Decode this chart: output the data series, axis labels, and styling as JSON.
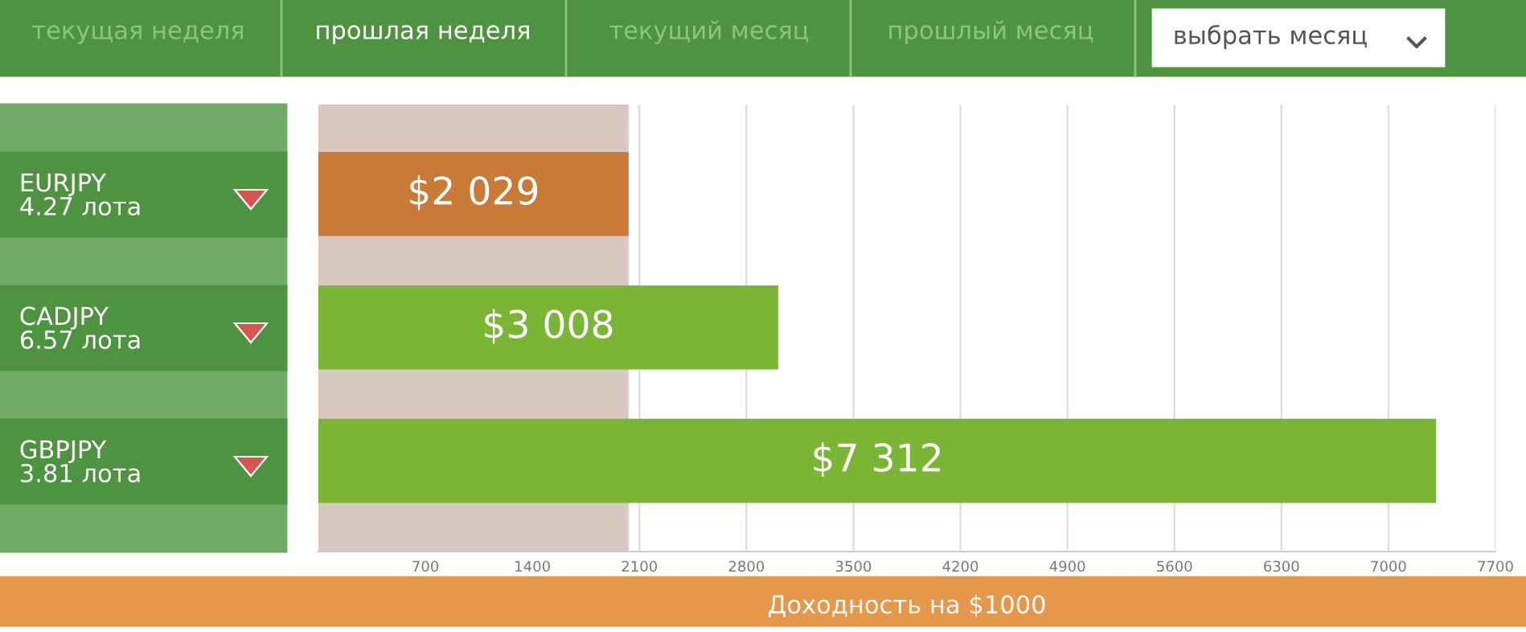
{
  "chart_data": {
    "type": "bar",
    "orientation": "horizontal",
    "categories": [
      "EURJPY\n4.27 лота",
      "CADJPY\n6.57 лота",
      "GBPJPY\n3.81 лота"
    ],
    "values": [
      2029,
      3008,
      7312
    ],
    "colors": [
      "#c97a36",
      "#7ab533",
      "#7ab533"
    ],
    "value_labels": [
      "$2 029",
      "$3 008",
      "$7 312"
    ],
    "xlabel": "Доходность на $1000",
    "xlim": [
      0,
      7700
    ],
    "xticks": [
      700,
      1400,
      2100,
      2800,
      3500,
      4200,
      4900,
      5600,
      6300,
      7000,
      7700
    ],
    "grid": "x",
    "bands": [
      {
        "axis": "x",
        "from": 0,
        "to": 2029,
        "color": "#d8c8c0"
      }
    ],
    "annotations": [
      "текущая неделя",
      "прошлая неделя",
      "текущий месяц",
      "прошлый месяц",
      "выбрать месяц"
    ]
  }
}
